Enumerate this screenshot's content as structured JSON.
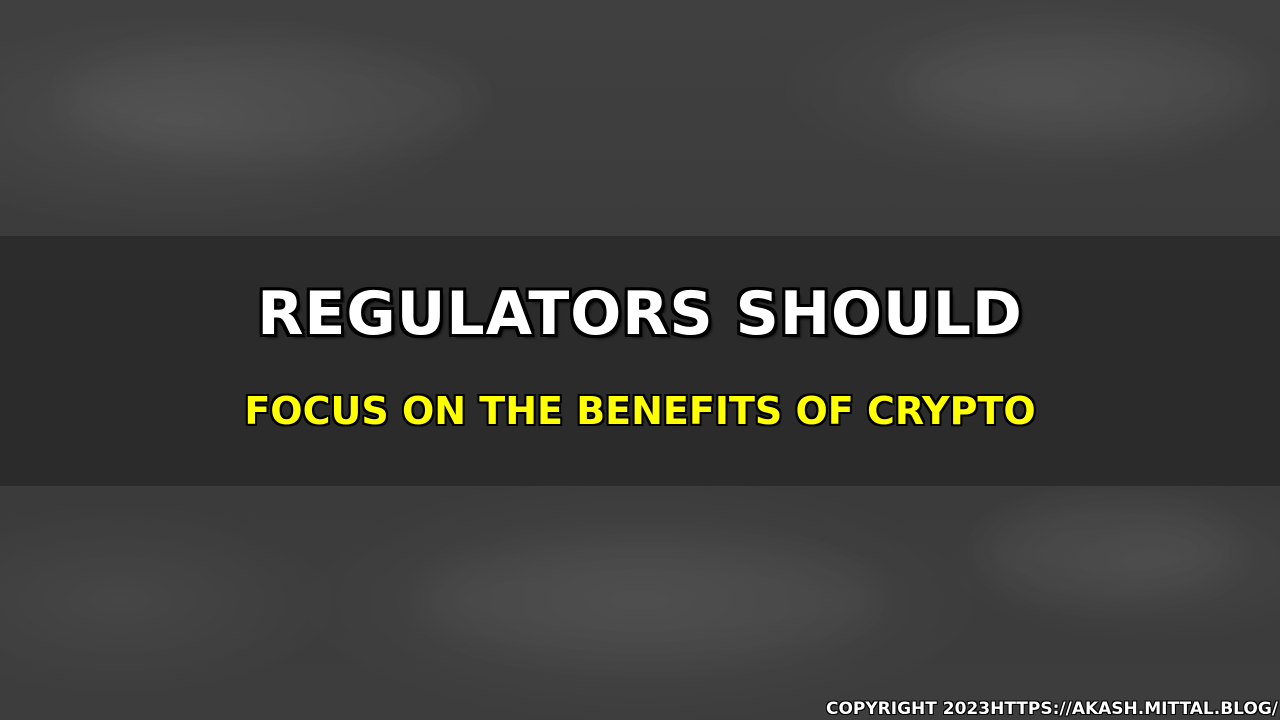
{
  "banner": {
    "headline": "REGULATORS SHOULD",
    "subheadline": "FOCUS ON THE BENEFITS OF CRYPTO",
    "copyright": "COPYRIGHT 2023HTTPS://AKASH.MITTAL.BLOG/"
  },
  "colors": {
    "headline": "#ffffff",
    "subheadline": "#ffff00",
    "background": "#3b3b3b",
    "band": "#282828"
  }
}
